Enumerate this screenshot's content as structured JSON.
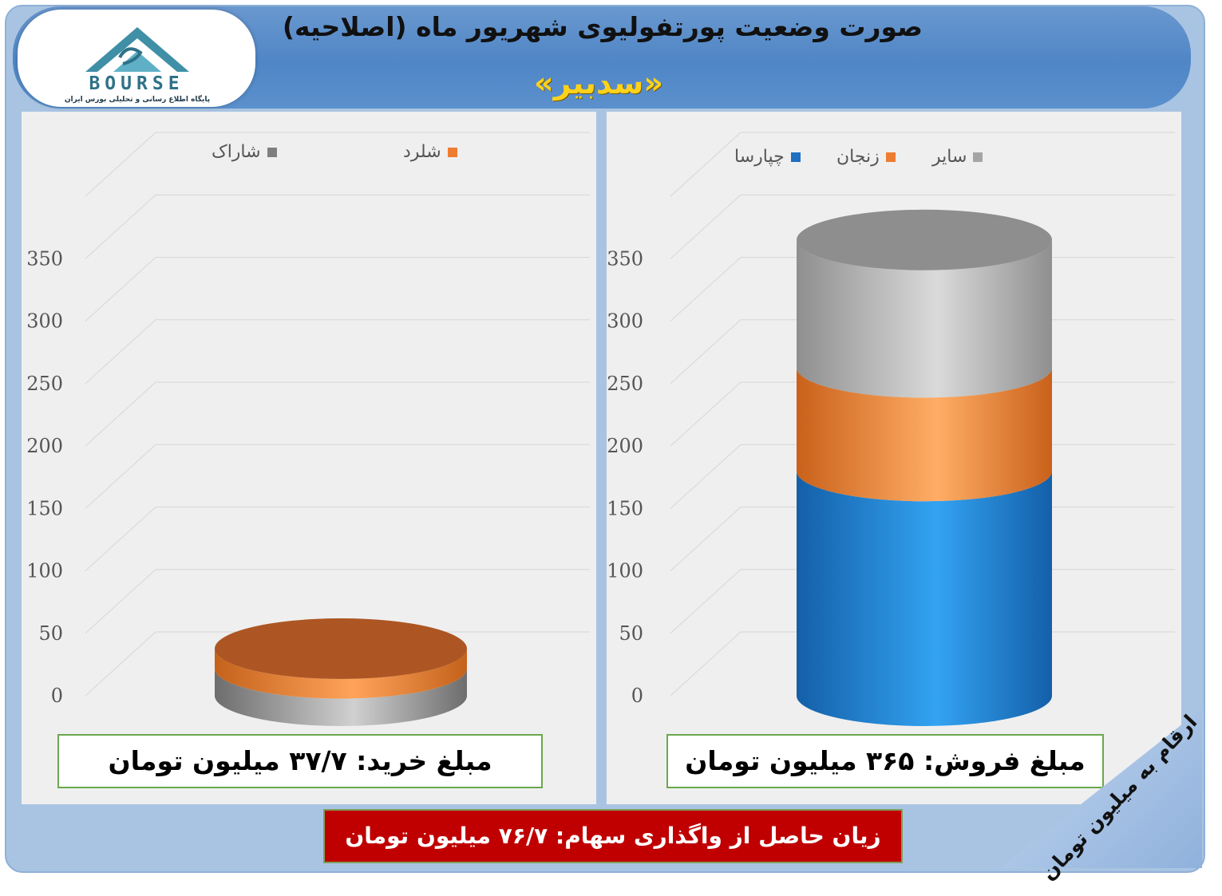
{
  "header": {
    "title": "صورت وضعیت پورتفولیوی شهریور ماه (اصلاحیه)",
    "subtitle": "«سدبیر»"
  },
  "logo": {
    "word": "BOURSE",
    "tagline": "پایگاه اطلاع رسانی و تحلیلی بورس ایران"
  },
  "colors": {
    "gray": "#8c8c8c",
    "orange": "#e8843a",
    "blue": "#1f80cf",
    "loss_bg": "#c00000",
    "accent": "#ffd21a"
  },
  "chart_data": [
    {
      "type": "bar",
      "stacked": true,
      "shape": "cylinder",
      "legend": [
        "شاراک",
        "شلرد"
      ],
      "series": [
        {
          "name": "شاراک",
          "values": [
            22
          ]
        },
        {
          "name": "شلرد",
          "values": [
            15.7
          ]
        }
      ],
      "yticks": [
        0,
        50,
        100,
        150,
        200,
        250,
        300,
        350
      ],
      "ylim": [
        0,
        350
      ],
      "grid": true
    },
    {
      "type": "bar",
      "stacked": true,
      "shape": "cylinder",
      "legend": [
        "چپارسا",
        "زنجان",
        "سایر"
      ],
      "series": [
        {
          "name": "چپارسا",
          "values": [
            180
          ]
        },
        {
          "name": "زنجان",
          "values": [
            83
          ]
        },
        {
          "name": "سایر",
          "values": [
            102
          ]
        }
      ],
      "yticks": [
        0,
        50,
        100,
        150,
        200,
        250,
        300,
        350
      ],
      "ylim": [
        0,
        350
      ],
      "grid": true
    }
  ],
  "boxes": {
    "buy": "مبلغ خرید: ۳۷/۷ میلیون تومان",
    "sell": "مبلغ فروش: ۳۶۵ میلیون تومان",
    "loss": "زیان حاصل از واگذاری سهام: ۷۶/۷  میلیون تومان",
    "note": "ارقام به میلیون تومان"
  }
}
